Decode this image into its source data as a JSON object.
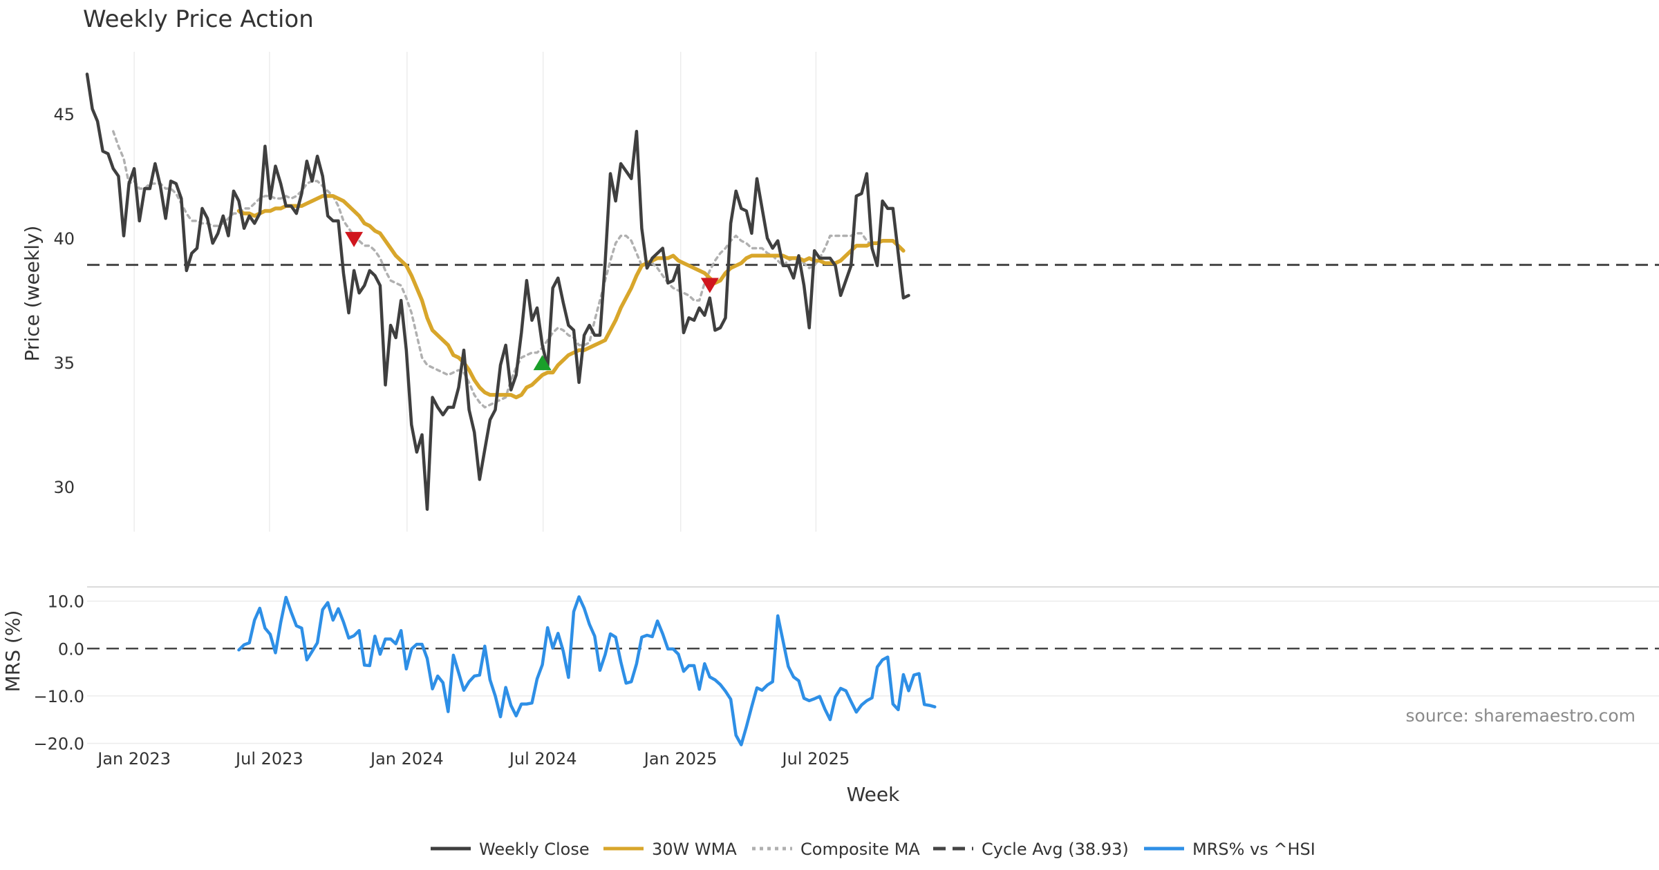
{
  "chart_data": [
    {
      "id": "price",
      "type": "line",
      "title": "Weekly Price Action",
      "ylabel": "Price (weekly)",
      "xlabel": "Week",
      "ylim": [
        28.2,
        47.5
      ],
      "yticks": [
        30,
        35,
        40,
        45
      ],
      "grid": "vertical",
      "xticks": [
        {
          "label": "Jan 2023",
          "date": "2023-01-01"
        },
        {
          "label": "Jul 2023",
          "date": "2023-07-01"
        },
        {
          "label": "Jan 2024",
          "date": "2024-01-01"
        },
        {
          "label": "Jul 2024",
          "date": "2024-07-01"
        },
        {
          "label": "Jan 2025",
          "date": "2025-01-01"
        },
        {
          "label": "Jul 2025",
          "date": "2025-07-01"
        }
      ],
      "x_start": "2022-10-30",
      "x_step_weeks": 1,
      "series": [
        {
          "name": "Weekly Close",
          "color": "#3f3f3f",
          "style": "solid",
          "start_index": 0,
          "values": [
            46.6,
            45.2,
            44.7,
            43.5,
            43.4,
            42.8,
            42.5,
            40.1,
            42.2,
            42.8,
            40.7,
            42.0,
            42.0,
            43.0,
            42.1,
            40.8,
            42.3,
            42.2,
            41.6,
            38.7,
            39.4,
            39.6,
            41.2,
            40.8,
            39.8,
            40.2,
            40.9,
            40.1,
            41.9,
            41.5,
            40.4,
            40.9,
            40.6,
            41.0,
            43.7,
            41.6,
            42.9,
            42.2,
            41.3,
            41.3,
            41.0,
            41.8,
            43.1,
            42.3,
            43.3,
            42.5,
            40.9,
            40.7,
            40.7,
            38.6,
            37.0,
            38.7,
            37.8,
            38.1,
            38.7,
            38.5,
            38.1,
            34.1,
            36.5,
            36.0,
            37.5,
            35.5,
            32.5,
            31.4,
            32.1,
            29.1,
            33.6,
            33.2,
            32.9,
            33.2,
            33.2,
            34.0,
            35.5,
            33.1,
            32.2,
            30.3,
            31.5,
            32.7,
            33.1,
            34.9,
            35.7,
            33.9,
            34.5,
            36.2,
            38.3,
            36.7,
            37.2,
            35.7,
            34.8,
            38.0,
            38.4,
            37.4,
            36.5,
            36.3,
            34.2,
            36.1,
            36.5,
            36.1,
            36.1,
            39.0,
            42.6,
            41.5,
            43.0,
            42.7,
            42.4,
            44.3,
            40.4,
            38.8,
            39.2,
            39.4,
            39.6,
            38.2,
            38.3,
            38.9,
            36.2,
            36.8,
            36.7,
            37.2,
            36.9,
            37.6,
            36.3,
            36.4,
            36.8,
            40.6,
            41.9,
            41.2,
            41.1,
            40.2,
            42.4,
            41.2,
            40.0,
            39.6,
            39.9,
            38.9,
            38.9,
            38.4,
            39.3,
            38.1,
            36.4,
            39.5,
            39.2,
            39.2,
            39.2,
            38.9,
            37.7,
            38.3,
            38.9,
            41.7,
            41.8,
            42.6,
            39.6,
            38.9,
            41.5,
            41.2,
            41.2,
            39.4,
            37.6,
            37.7
          ]
        },
        {
          "name": "30W WMA",
          "color": "#d8a62b",
          "style": "solid",
          "start_index": 29,
          "values": [
            41.1,
            41.0,
            41.0,
            40.9,
            41.0,
            41.1,
            41.1,
            41.2,
            41.2,
            41.3,
            41.3,
            41.3,
            41.3,
            41.4,
            41.5,
            41.6,
            41.7,
            41.7,
            41.7,
            41.6,
            41.5,
            41.3,
            41.1,
            40.9,
            40.6,
            40.5,
            40.3,
            40.2,
            39.9,
            39.6,
            39.3,
            39.1,
            38.9,
            38.5,
            38.0,
            37.5,
            36.8,
            36.3,
            36.1,
            35.9,
            35.7,
            35.3,
            35.2,
            35.0,
            34.7,
            34.3,
            34.0,
            33.8,
            33.7,
            33.7,
            33.7,
            33.7,
            33.7,
            33.6,
            33.7,
            34.0,
            34.1,
            34.3,
            34.5,
            34.6,
            34.6,
            34.9,
            35.1,
            35.3,
            35.4,
            35.5,
            35.5,
            35.6,
            35.7,
            35.8,
            35.9,
            36.3,
            36.7,
            37.2,
            37.6,
            38.0,
            38.5,
            38.9,
            39.0,
            39.1,
            39.2,
            39.2,
            39.2,
            39.3,
            39.1,
            39.0,
            38.9,
            38.8,
            38.7,
            38.6,
            38.4,
            38.2,
            38.3,
            38.6,
            38.8,
            38.9,
            39.0,
            39.2,
            39.3,
            39.3,
            39.3,
            39.3,
            39.3,
            39.3,
            39.3,
            39.2,
            39.2,
            39.2,
            39.1,
            39.2,
            39.1,
            39.1,
            39.0,
            39.0,
            39.0,
            39.1,
            39.3,
            39.5,
            39.7,
            39.7,
            39.7,
            39.8,
            39.8,
            39.9,
            39.9,
            39.9,
            39.7,
            39.5
          ]
        },
        {
          "name": "Composite MA",
          "color": "#b0b0b0",
          "style": "dotted",
          "start_index": 5,
          "values": [
            44.3,
            43.7,
            43.2,
            42.2,
            42.3,
            42.0,
            42.0,
            42.2,
            42.2,
            42.2,
            42.0,
            42.0,
            41.8,
            41.4,
            41.0,
            40.7,
            40.7,
            40.6,
            40.6,
            40.5,
            40.5,
            40.6,
            40.8,
            41.0,
            41.0,
            41.2,
            41.2,
            41.4,
            41.6,
            41.7,
            41.7,
            41.6,
            41.6,
            41.7,
            41.6,
            41.7,
            41.9,
            42.2,
            42.3,
            42.3,
            42.1,
            41.9,
            41.7,
            41.3,
            40.7,
            40.4,
            40.1,
            39.9,
            39.7,
            39.7,
            39.5,
            39.2,
            38.7,
            38.3,
            38.2,
            38.1,
            37.6,
            37.0,
            36.1,
            35.2,
            34.9,
            34.8,
            34.7,
            34.6,
            34.5,
            34.6,
            34.7,
            34.6,
            34.2,
            33.7,
            33.4,
            33.2,
            33.3,
            33.4,
            33.5,
            33.6,
            34.3,
            34.8,
            35.2,
            35.3,
            35.4,
            35.4,
            35.6,
            35.9,
            36.2,
            36.4,
            36.3,
            36.1,
            36.0,
            35.7,
            35.7,
            35.8,
            36.7,
            37.5,
            38.3,
            39.1,
            39.8,
            40.1,
            40.1,
            39.9,
            39.4,
            38.9,
            39.0,
            39.0,
            38.8,
            38.5,
            38.2,
            38.0,
            37.9,
            37.8,
            37.7,
            37.5,
            37.5,
            38.2,
            38.7,
            39.1,
            39.4,
            39.6,
            39.9,
            40.1,
            39.9,
            39.8,
            39.6,
            39.6,
            39.6,
            39.4,
            39.3,
            39.1,
            38.9,
            39.1,
            39.2,
            39.1,
            39.0,
            38.8,
            38.9,
            39.2,
            39.6,
            40.1,
            40.1,
            40.1,
            40.1,
            40.1,
            40.2,
            40.2,
            39.9,
            39.7
          ]
        },
        {
          "name": "Cycle Avg (38.93)",
          "color": "#444444",
          "style": "dashed",
          "constant": 38.93
        }
      ],
      "markers": [
        {
          "type": "sell",
          "index": 51,
          "value": 39.95,
          "color": "#d0161e"
        },
        {
          "type": "buy",
          "index": 87,
          "value": 35.0,
          "color": "#1a9f2a"
        },
        {
          "type": "sell",
          "index": 119,
          "value": 38.1,
          "color": "#d0161e"
        }
      ]
    },
    {
      "id": "mrs",
      "type": "line",
      "ylabel": "MRS (%)",
      "ylim": [
        -20.5,
        13.0
      ],
      "yticks": [
        10,
        0,
        -10,
        -20
      ],
      "ytick_labels": [
        "10.0",
        "0.0",
        "−10.0",
        "−20.0"
      ],
      "grid": "horizontal",
      "zero_line": 0,
      "series": [
        {
          "name": "MRS% vs ^HSI",
          "color": "#2e8fe6",
          "style": "solid",
          "start_index": 29,
          "values": [
            -0.3,
            0.8,
            1.2,
            6.0,
            8.5,
            4.3,
            3.0,
            -0.9,
            5.5,
            10.8,
            7.7,
            4.8,
            4.3,
            -2.4,
            -0.6,
            1.2,
            8.2,
            9.7,
            6.0,
            8.4,
            5.6,
            2.2,
            2.7,
            3.8,
            -3.5,
            -3.6,
            2.6,
            -1.2,
            2.0,
            2.0,
            1.0,
            3.8,
            -4.3,
            -0.1,
            0.9,
            0.9,
            -2.1,
            -8.5,
            -5.8,
            -7.2,
            -13.3,
            -1.4,
            -5.1,
            -8.8,
            -7.0,
            -5.8,
            -5.6,
            0.5,
            -6.6,
            -10.0,
            -14.4,
            -8.2,
            -12.0,
            -14.2,
            -11.7,
            -11.7,
            -11.5,
            -6.4,
            -3.4,
            4.4,
            0.1,
            3.2,
            -0.6,
            -6.1,
            7.8,
            10.9,
            8.5,
            5.1,
            2.6,
            -4.6,
            -1.3,
            3.1,
            2.4,
            -2.8,
            -7.3,
            -7.0,
            -3.2,
            2.4,
            2.8,
            2.5,
            5.8,
            3.1,
            -0.1,
            -0.1,
            -1.2,
            -4.8,
            -3.6,
            -3.6,
            -8.6,
            -3.2,
            -6.0,
            -6.6,
            -7.6,
            -9.0,
            -10.7,
            -18.3,
            -20.3,
            -16.5,
            -12.3,
            -8.3,
            -8.8,
            -7.7,
            -7.0,
            6.9,
            1.6,
            -3.8,
            -6.0,
            -6.8,
            -10.5,
            -11.0,
            -10.6,
            -10.1,
            -12.8,
            -15.0,
            -10.2,
            -8.4,
            -8.9,
            -11.2,
            -13.4,
            -11.9,
            -11.0,
            -10.4,
            -3.9,
            -2.4,
            -1.8,
            -11.7,
            -12.9,
            -5.5,
            -8.9,
            -5.6,
            -5.3,
            -11.8,
            -12.0,
            -12.3
          ]
        }
      ]
    }
  ],
  "legend": {
    "position": "bottom-center",
    "items": [
      {
        "label": "Weekly Close",
        "color": "#3f3f3f",
        "style": "solid"
      },
      {
        "label": "30W WMA",
        "color": "#d8a62b",
        "style": "solid"
      },
      {
        "label": "Composite MA",
        "color": "#b0b0b0",
        "style": "dotted"
      },
      {
        "label": "Cycle Avg (38.93)",
        "color": "#444444",
        "style": "dashed"
      },
      {
        "label": "MRS% vs ^HSI",
        "color": "#2e8fe6",
        "style": "solid"
      }
    ]
  },
  "source": "source: sharemaestro.com"
}
